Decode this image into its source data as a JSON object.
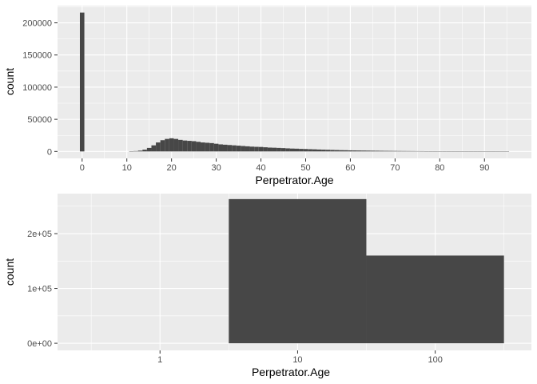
{
  "colors": {
    "panel": "#ebebeb",
    "grid_major": "#ffffff",
    "bar": "#474747",
    "tick_text": "#4d4d4d"
  },
  "chart_data": [
    {
      "type": "bar",
      "subtype": "histogram",
      "xlabel": "Perpetrator.Age",
      "ylabel": "count",
      "xlim": [
        -5.5,
        100.5
      ],
      "ylim": [
        -10800,
        226800
      ],
      "x_ticks": [
        0,
        10,
        20,
        30,
        40,
        50,
        60,
        70,
        80,
        90
      ],
      "x_tick_labels": [
        "0",
        "10",
        "20",
        "30",
        "40",
        "50",
        "60",
        "70",
        "80",
        "90"
      ],
      "y_ticks": [
        0,
        50000,
        100000,
        150000,
        200000
      ],
      "y_tick_labels": [
        "0",
        "50000",
        "100000",
        "150000",
        "200000"
      ],
      "bin_width": 1,
      "x": [
        0,
        11,
        12,
        13,
        14,
        15,
        16,
        17,
        18,
        19,
        20,
        21,
        22,
        23,
        24,
        25,
        26,
        27,
        28,
        29,
        30,
        31,
        32,
        33,
        34,
        35,
        36,
        37,
        38,
        39,
        40,
        41,
        42,
        43,
        44,
        45,
        46,
        47,
        48,
        49,
        50,
        51,
        52,
        53,
        54,
        55,
        56,
        57,
        58,
        59,
        60,
        61,
        62,
        63,
        64,
        65,
        66,
        67,
        68,
        69,
        70,
        71,
        72,
        73,
        74,
        75,
        76,
        77,
        78,
        79,
        80,
        81,
        82,
        83,
        84,
        85,
        86,
        87,
        88,
        89,
        90,
        91,
        92,
        93,
        94,
        95
      ],
      "values": [
        216000,
        300,
        600,
        1300,
        2800,
        5500,
        9500,
        14000,
        17500,
        19500,
        20500,
        19500,
        18000,
        17000,
        16500,
        16000,
        15000,
        14000,
        13500,
        13000,
        12000,
        11000,
        10500,
        10000,
        9500,
        9000,
        8500,
        8000,
        7500,
        7200,
        7000,
        6500,
        6000,
        5800,
        5500,
        5200,
        4800,
        4500,
        4300,
        4000,
        3800,
        3500,
        3300,
        3000,
        2800,
        2600,
        2400,
        2200,
        2000,
        1900,
        1700,
        1600,
        1500,
        1400,
        1300,
        1200,
        1100,
        1000,
        900,
        850,
        800,
        700,
        650,
        600,
        550,
        500,
        450,
        400,
        350,
        300,
        280,
        250,
        220,
        200,
        180,
        150,
        130,
        110,
        90,
        70,
        60,
        50,
        40,
        30,
        20,
        15
      ]
    },
    {
      "type": "bar",
      "subtype": "histogram",
      "xscale": "log10",
      "xlabel": "Perpetrator.Age",
      "ylabel": "count",
      "xlim": [
        0.18,
        500
      ],
      "ylim": [
        -13000,
        273000
      ],
      "x_ticks": [
        1,
        10,
        100
      ],
      "x_tick_labels": [
        "1",
        "10",
        "100"
      ],
      "y_ticks": [
        0,
        100000,
        200000
      ],
      "y_tick_labels": [
        "0e+00",
        "1e+05",
        "2e+05"
      ],
      "bins": [
        {
          "from": 3.16,
          "to": 31.6,
          "value": 263000
        },
        {
          "from": 31.6,
          "to": 316,
          "value": 160000
        }
      ]
    }
  ]
}
